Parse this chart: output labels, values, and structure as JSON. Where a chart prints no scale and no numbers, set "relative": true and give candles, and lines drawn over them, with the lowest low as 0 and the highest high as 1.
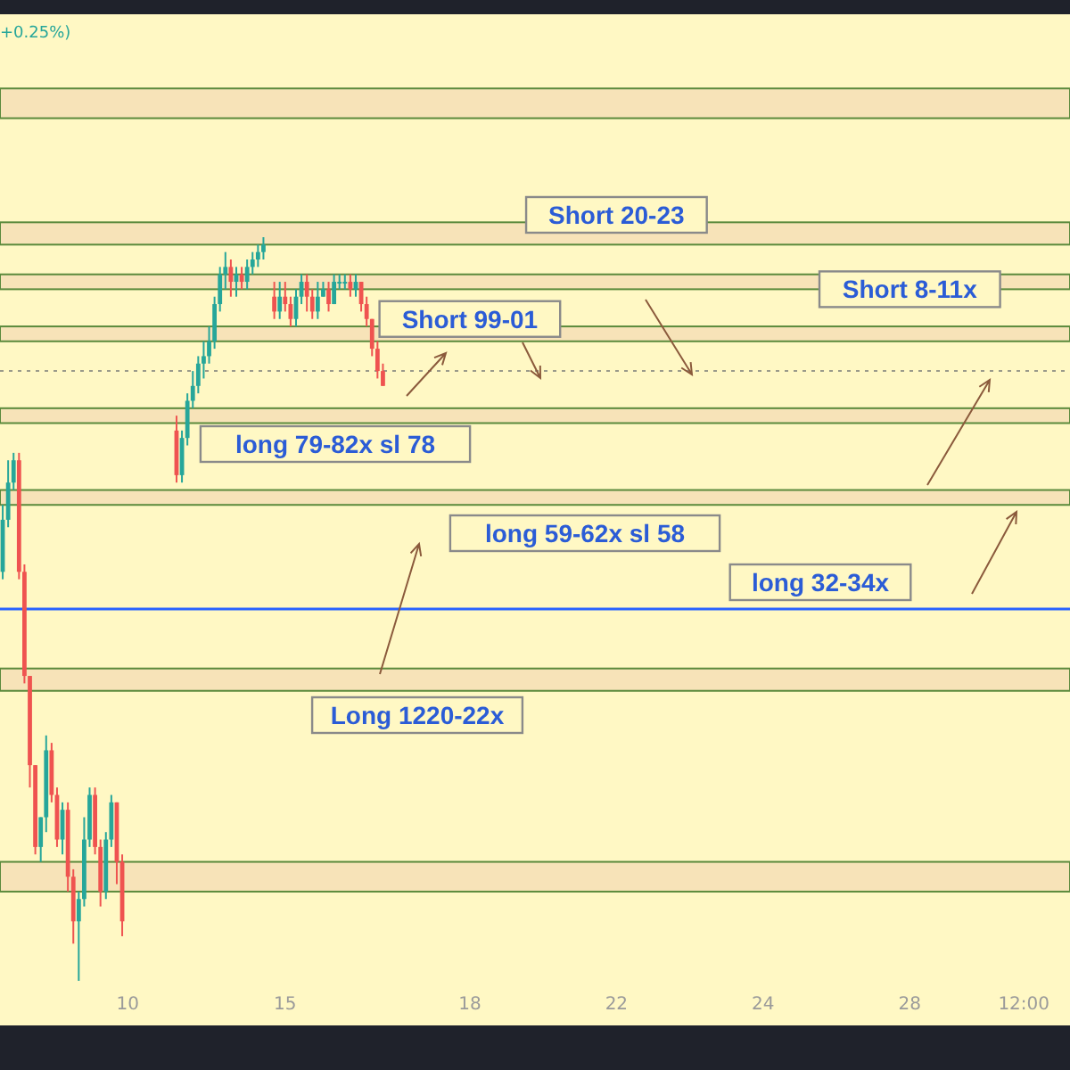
{
  "chart_data": {
    "type": "candlestick",
    "relative": true,
    "tick_labels": "x",
    "grid": false,
    "categories": [
      null,
      null,
      null,
      null,
      null,
      null,
      null,
      null,
      null,
      null,
      null,
      null,
      null,
      null,
      null,
      null,
      null,
      null,
      null,
      null,
      null,
      null,
      null,
      "10",
      null,
      null,
      null,
      null,
      null,
      null,
      null,
      null,
      null,
      null,
      null,
      null,
      null,
      null,
      null,
      null,
      null,
      null,
      null,
      null,
      null,
      null,
      null,
      null,
      null,
      null,
      null,
      null,
      "15",
      null,
      null,
      null,
      null,
      null,
      null,
      null,
      null,
      null,
      null,
      null,
      null,
      null,
      null,
      null,
      null,
      null,
      null,
      null,
      null,
      null,
      null,
      null,
      null,
      null,
      null,
      null,
      null,
      null,
      null,
      null,
      null,
      null,
      "18",
      null,
      null,
      null,
      null,
      null,
      null,
      null,
      null,
      null,
      null,
      null,
      null,
      null,
      null,
      null,
      null,
      null,
      null,
      null,
      null,
      null,
      null,
      null,
      null,
      null,
      null,
      "22",
      null,
      null,
      null,
      null,
      null,
      null,
      null,
      null,
      null,
      null,
      null,
      null,
      null,
      null,
      null,
      null,
      null,
      null,
      null,
      null,
      null,
      null,
      null,
      null,
      null,
      null,
      "24",
      null,
      null,
      null,
      null,
      null,
      null,
      null,
      null,
      null,
      null,
      null,
      null,
      null,
      null,
      null,
      null,
      null,
      null,
      null,
      null,
      null,
      null,
      null,
      null,
      null,
      null,
      "28",
      null,
      null,
      null,
      null,
      null,
      null,
      null,
      null,
      null,
      null,
      null,
      null,
      null,
      null,
      null,
      null,
      null,
      null,
      null,
      null,
      "12:00",
      null,
      null,
      null,
      null,
      null,
      null,
      null,
      null
    ],
    "ohlc": [
      [
        0.55,
        0.64,
        0.54,
        0.62
      ],
      [
        0.62,
        0.7,
        0.61,
        0.67
      ],
      [
        0.67,
        0.71,
        0.66,
        0.7
      ],
      [
        0.7,
        0.71,
        0.54,
        0.55
      ],
      [
        0.55,
        0.56,
        0.4,
        0.41
      ],
      [
        0.41,
        0.41,
        0.26,
        0.29
      ],
      [
        0.29,
        0.29,
        0.17,
        0.18
      ],
      [
        0.18,
        0.22,
        0.16,
        0.22
      ],
      [
        0.22,
        0.33,
        0.2,
        0.31
      ],
      [
        0.31,
        0.32,
        0.24,
        0.25
      ],
      [
        0.25,
        0.26,
        0.18,
        0.19
      ],
      [
        0.19,
        0.24,
        0.17,
        0.23
      ],
      [
        0.23,
        0.24,
        0.12,
        0.14
      ],
      [
        0.14,
        0.15,
        0.05,
        0.08
      ],
      [
        0.08,
        0.12,
        0,
        0.11
      ],
      [
        0.11,
        0.22,
        0.1,
        0.19
      ],
      [
        0.19,
        0.26,
        0.18,
        0.25
      ],
      [
        0.25,
        0.26,
        0.17,
        0.18
      ],
      [
        0.18,
        0.19,
        0.1,
        0.12
      ],
      [
        0.12,
        0.2,
        0.11,
        0.19
      ],
      [
        0.19,
        0.25,
        0.18,
        0.24
      ],
      [
        0.24,
        0.24,
        0.13,
        0.16
      ],
      [
        0.16,
        0.17,
        0.06,
        0.08
      ],
      null,
      null,
      null,
      null,
      null,
      null,
      null,
      null,
      null,
      [
        0.74,
        0.76,
        0.67,
        0.68
      ],
      [
        0.68,
        0.74,
        0.67,
        0.73
      ],
      [
        0.73,
        0.79,
        0.72,
        0.78
      ],
      [
        0.78,
        0.82,
        0.77,
        0.8
      ],
      [
        0.8,
        0.84,
        0.79,
        0.83
      ],
      [
        0.83,
        0.86,
        0.81,
        0.84
      ],
      [
        0.84,
        0.88,
        0.83,
        0.86
      ],
      [
        0.86,
        0.92,
        0.85,
        0.91
      ],
      [
        0.91,
        0.96,
        0.9,
        0.95
      ],
      [
        0.95,
        0.98,
        0.93,
        0.96
      ],
      [
        0.96,
        0.97,
        0.92,
        0.94
      ],
      [
        0.94,
        0.96,
        0.92,
        0.95
      ],
      [
        0.95,
        0.96,
        0.93,
        0.94
      ],
      [
        0.94,
        0.97,
        0.93,
        0.96
      ],
      [
        0.96,
        0.98,
        0.95,
        0.97
      ],
      [
        0.97,
        0.99,
        0.96,
        0.98
      ],
      [
        0.98,
        1,
        0.97,
        0.99
      ],
      null,
      [
        0.92,
        0.94,
        0.89,
        0.9
      ],
      [
        0.9,
        0.94,
        0.89,
        0.92
      ],
      [
        0.92,
        0.94,
        0.9,
        0.91
      ],
      [
        0.91,
        0.92,
        0.88,
        0.89
      ],
      [
        0.89,
        0.93,
        0.88,
        0.92
      ],
      [
        0.92,
        0.95,
        0.91,
        0.94
      ],
      [
        0.94,
        0.95,
        0.9,
        0.92
      ],
      [
        0.92,
        0.93,
        0.89,
        0.9
      ],
      [
        0.9,
        0.94,
        0.89,
        0.92
      ],
      [
        0.92,
        0.94,
        0.92,
        0.93
      ],
      [
        0.93,
        0.94,
        0.9,
        0.91
      ],
      [
        0.91,
        0.95,
        0.91,
        0.94
      ],
      [
        0.94,
        0.95,
        0.93,
        0.94
      ],
      [
        0.94,
        0.95,
        0.93,
        0.94
      ],
      [
        0.94,
        0.95,
        0.92,
        0.93
      ],
      [
        0.93,
        0.95,
        0.92,
        0.94
      ],
      [
        0.94,
        0.94,
        0.9,
        0.91
      ],
      [
        0.91,
        0.92,
        0.88,
        0.89
      ],
      [
        0.89,
        0.89,
        0.84,
        0.85
      ],
      [
        0.85,
        0.86,
        0.81,
        0.82
      ],
      [
        0.82,
        0.83,
        0.8,
        0.8
      ],
      null,
      null,
      null,
      null,
      null,
      null,
      null,
      null,
      null,
      null,
      null,
      null,
      null,
      null,
      null,
      null,
      null,
      null,
      null,
      null,
      null,
      null,
      null,
      null,
      null,
      null,
      null,
      null,
      null,
      null,
      null,
      null,
      null,
      null,
      null,
      null,
      null,
      null,
      null,
      null,
      null,
      null,
      null,
      null,
      null,
      null,
      null,
      null,
      null,
      null,
      null,
      null,
      null,
      null,
      null,
      null,
      null,
      null,
      null,
      null,
      null,
      null,
      null,
      null,
      null,
      null,
      null,
      null,
      null,
      null,
      null,
      null,
      null,
      null,
      null,
      null,
      null,
      null,
      null,
      null,
      null,
      null,
      null,
      null,
      null,
      null,
      null,
      null,
      null,
      null,
      null,
      null,
      null,
      null,
      null,
      null,
      null,
      null,
      null,
      null,
      null,
      null,
      null,
      null,
      null,
      null,
      null,
      null,
      null,
      null,
      null,
      null,
      null,
      null,
      null,
      null,
      null,
      null,
      null,
      null,
      null,
      null,
      null,
      null,
      null,
      null
    ],
    "bands": [
      {
        "axis": "y",
        "from": 1.16,
        "to": 1.2,
        "color": "#f7e3b8"
      },
      {
        "axis": "y",
        "from": 0.99,
        "to": 1.02,
        "color": "#f7e3b8"
      },
      {
        "axis": "y",
        "from": 0.93,
        "to": 0.95,
        "color": "#f7e3b8"
      },
      {
        "axis": "y",
        "from": 0.86,
        "to": 0.88,
        "color": "#f7e3b8"
      },
      {
        "axis": "y",
        "from": 0.75,
        "to": 0.77,
        "color": "#f7e3b8"
      },
      {
        "axis": "y",
        "from": 0.64,
        "to": 0.66,
        "color": "#f7e3b8"
      },
      {
        "axis": "y",
        "from": 0.39,
        "to": 0.42,
        "color": "#f7e3b8"
      },
      {
        "axis": "y",
        "from": 0.12,
        "to": 0.16,
        "color": "#f7e3b8"
      }
    ],
    "ref_lines": [
      {
        "axis": "y",
        "value": 0.5,
        "label": "long 32-34x",
        "color": "#2962ff",
        "line_style": "solid"
      },
      {
        "axis": "y",
        "value": 0.82,
        "color": "#9a9a8a",
        "line_style": "dotted"
      }
    ],
    "annotations": [
      "+0.25%)",
      {
        "text": "Short 20-23",
        "x": "22",
        "y": 1.03
      },
      {
        "text": "Short 8-11x",
        "x": "28",
        "y": 0.93
      },
      {
        "text": "Short 99-01",
        "x": "18",
        "y": 0.89
      },
      "long 79-82x sl 78",
      "long 59-62x sl 58",
      "Long 1220-22x"
    ]
  }
}
